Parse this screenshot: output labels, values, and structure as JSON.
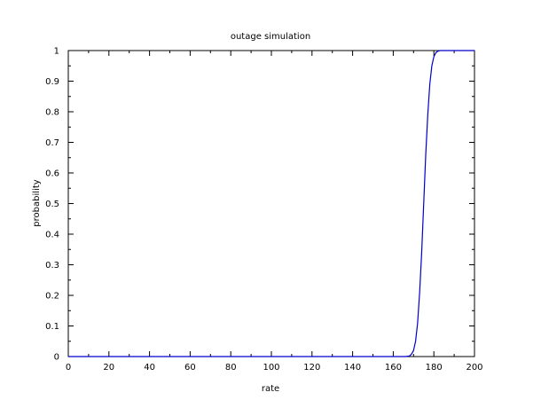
{
  "chart_data": {
    "type": "line",
    "title": "outage simulation",
    "xlabel": "rate",
    "ylabel": "probability",
    "xlim": [
      0,
      200
    ],
    "ylim": [
      0,
      1
    ],
    "x_ticks": [
      0,
      20,
      40,
      60,
      80,
      100,
      120,
      140,
      160,
      180,
      200
    ],
    "y_ticks": [
      0,
      0.1,
      0.2,
      0.3,
      0.4,
      0.5,
      0.6,
      0.7,
      0.8,
      0.9,
      1
    ],
    "grid": false,
    "legend": "none",
    "series": [
      {
        "color": "#0000cc",
        "x": [
          0,
          160,
          166,
          168,
          169,
          170,
          171,
          172,
          173,
          174,
          175,
          176,
          177,
          178,
          179,
          180,
          181,
          182,
          183,
          200
        ],
        "y": [
          0,
          0,
          0,
          0.002,
          0.008,
          0.02,
          0.05,
          0.11,
          0.21,
          0.34,
          0.5,
          0.66,
          0.79,
          0.89,
          0.95,
          0.98,
          0.993,
          0.998,
          1,
          1
        ]
      }
    ]
  }
}
